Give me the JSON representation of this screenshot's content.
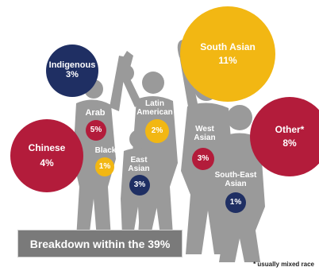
{
  "chart_data": {
    "type": "bubble",
    "title": "Breakdown within the 39%",
    "footnote": "* usually mixed race",
    "colors": {
      "navy": "#1f2f63",
      "crimson": "#b31c3b",
      "gold": "#f2b713",
      "silhouette": "#9a9a9a",
      "banner": "#7a7a7a"
    },
    "groups": [
      {
        "name": "Indigenous",
        "value": "3%",
        "color": "navy"
      },
      {
        "name": "South Asian",
        "value": "11%",
        "color": "gold"
      },
      {
        "name": "Other*",
        "value": "8%",
        "color": "crimson"
      },
      {
        "name": "Chinese",
        "value": "4%",
        "color": "crimson"
      },
      {
        "name": "Arab",
        "value": "5%",
        "color": "crimson"
      },
      {
        "name": "Black",
        "value": "1%",
        "color": "gold"
      },
      {
        "name": "Latin American",
        "value": "2%",
        "color": "gold"
      },
      {
        "name": "West Asian",
        "value": "3%",
        "color": "crimson"
      },
      {
        "name": "East Asian",
        "value": "3%",
        "color": "navy"
      },
      {
        "name": "South-East Asian",
        "value": "1%",
        "color": "navy"
      }
    ]
  }
}
